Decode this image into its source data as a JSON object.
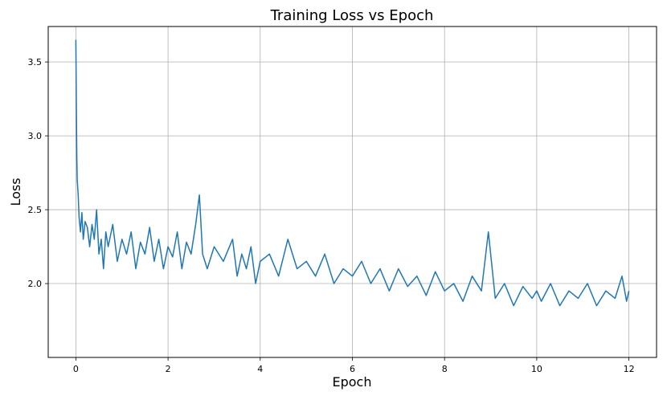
{
  "chart_data": {
    "type": "line",
    "title": "Training Loss vs Epoch",
    "xlabel": "Epoch",
    "ylabel": "Loss",
    "xlim": [
      -0.6,
      12.6
    ],
    "ylim": [
      1.5,
      3.74
    ],
    "xticks": [
      0,
      2,
      4,
      6,
      8,
      10,
      12
    ],
    "xtick_labels": [
      "0",
      "2",
      "4",
      "6",
      "8",
      "10",
      "12"
    ],
    "yticks": [
      2.0,
      2.5,
      3.0,
      3.5
    ],
    "ytick_labels": [
      "2.0",
      "2.5",
      "3.0",
      "3.5"
    ],
    "grid": true,
    "series": [
      {
        "color": "#1f77b4",
        "x": [
          0.0,
          0.01,
          0.02,
          0.03,
          0.05,
          0.07,
          0.1,
          0.13,
          0.16,
          0.2,
          0.25,
          0.3,
          0.35,
          0.4,
          0.45,
          0.5,
          0.55,
          0.6,
          0.65,
          0.7,
          0.8,
          0.9,
          1.0,
          1.1,
          1.2,
          1.3,
          1.4,
          1.5,
          1.6,
          1.7,
          1.8,
          1.9,
          2.0,
          2.1,
          2.2,
          2.3,
          2.4,
          2.5,
          2.6,
          2.68,
          2.75,
          2.85,
          3.0,
          3.2,
          3.4,
          3.5,
          3.6,
          3.7,
          3.8,
          3.9,
          4.0,
          4.2,
          4.4,
          4.6,
          4.8,
          5.0,
          5.2,
          5.4,
          5.6,
          5.8,
          6.0,
          6.2,
          6.4,
          6.6,
          6.8,
          7.0,
          7.2,
          7.4,
          7.6,
          7.8,
          8.0,
          8.2,
          8.4,
          8.6,
          8.8,
          8.95,
          9.1,
          9.3,
          9.5,
          9.7,
          9.9,
          10.0,
          10.1,
          10.3,
          10.5,
          10.7,
          10.9,
          11.1,
          11.3,
          11.5,
          11.7,
          11.85,
          11.95,
          12.0
        ],
        "values": [
          3.65,
          3.2,
          2.85,
          2.7,
          2.6,
          2.45,
          2.35,
          2.48,
          2.3,
          2.42,
          2.38,
          2.25,
          2.4,
          2.3,
          2.5,
          2.2,
          2.3,
          2.1,
          2.35,
          2.25,
          2.4,
          2.15,
          2.3,
          2.2,
          2.35,
          2.1,
          2.28,
          2.2,
          2.38,
          2.15,
          2.3,
          2.1,
          2.25,
          2.18,
          2.35,
          2.1,
          2.28,
          2.2,
          2.4,
          2.6,
          2.2,
          2.1,
          2.25,
          2.15,
          2.3,
          2.05,
          2.2,
          2.1,
          2.25,
          2.0,
          2.15,
          2.2,
          2.05,
          2.3,
          2.1,
          2.15,
          2.05,
          2.2,
          2.0,
          2.1,
          2.05,
          2.15,
          2.0,
          2.1,
          1.95,
          2.1,
          1.98,
          2.05,
          1.92,
          2.08,
          1.95,
          2.0,
          1.88,
          2.05,
          1.95,
          2.35,
          1.9,
          2.0,
          1.85,
          1.98,
          1.9,
          1.95,
          1.88,
          2.0,
          1.85,
          1.95,
          1.9,
          2.0,
          1.85,
          1.95,
          1.9,
          2.05,
          1.88,
          1.95
        ]
      }
    ]
  }
}
